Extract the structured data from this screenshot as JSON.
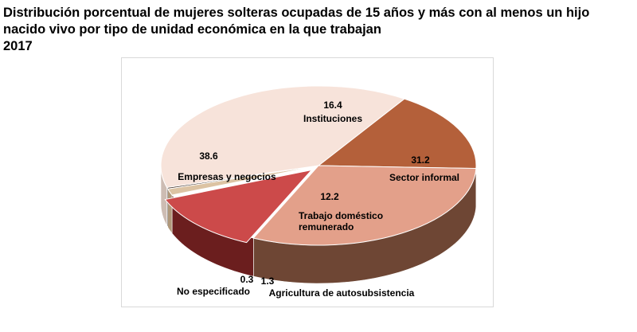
{
  "title": {
    "line1": "Distribución porcentual de mujeres solteras ocupadas de 15 años y más con al menos un hijo",
    "line2": "nacido vivo por tipo de unidad económica en la que trabajan",
    "year": "2017"
  },
  "chart_data": {
    "type": "pie",
    "title": "Distribución porcentual de mujeres solteras ocupadas de 15 años y más con al menos un hijo nacido vivo por tipo de unidad económica en la que trabajan 2017",
    "style": "3d",
    "slices": [
      {
        "label": "Instituciones",
        "value": 16.4,
        "value_text": "16.4",
        "color": "#b4603a",
        "side_color": "#7a3e22"
      },
      {
        "label": "Sector informal",
        "value": 31.2,
        "value_text": "31.2",
        "color": "#e3a08a",
        "side_color": "#6e4634"
      },
      {
        "label": "Trabajo doméstico remunerado",
        "label_lines": [
          "Trabajo doméstico",
          "remunerado"
        ],
        "value": 12.2,
        "value_text": "12.2",
        "color": "#cc4a4a",
        "side_color": "#6b1e1e"
      },
      {
        "label": "Agricultura de autosubsistencia",
        "value": 1.3,
        "value_text": "1.3",
        "color": "#dcc3a3",
        "side_color": "#b0987a"
      },
      {
        "label": "No especificado",
        "value": 0.3,
        "value_text": "0.3",
        "color": "#3d2a1f",
        "side_color": "#2a1c14"
      },
      {
        "label": "Empresas y negocios",
        "value": 38.6,
        "value_text": "38.6",
        "color": "#f7e3da",
        "side_color": "#cdbcb3"
      }
    ]
  }
}
